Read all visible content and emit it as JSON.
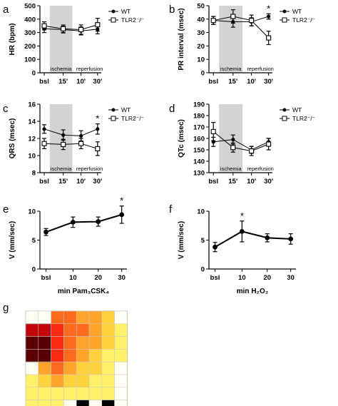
{
  "chart_data": [
    {
      "panel": "a",
      "type": "line",
      "ylabel": "HR (bpm)",
      "ylim": [
        0,
        500
      ],
      "yticks": [
        0,
        100,
        200,
        300,
        400,
        500
      ],
      "categories": [
        "bsl",
        "15'",
        "10'",
        "30'"
      ],
      "shade_label": "ischemia",
      "post_label": "reperfusion",
      "legend": [
        "WT",
        "TLR2⁻/⁻"
      ],
      "legend_position": "top-right",
      "series": [
        {
          "name": "WT",
          "marker": "circle",
          "values": [
            328,
            322,
            312,
            325
          ],
          "err": [
            28,
            25,
            30,
            35
          ]
        },
        {
          "name": "TLR2⁻/⁻",
          "marker": "square",
          "values": [
            350,
            328,
            322,
            358
          ],
          "err": [
            30,
            28,
            35,
            48
          ]
        }
      ],
      "stars": []
    },
    {
      "panel": "b",
      "type": "line",
      "ylabel": "PR interval (msec)",
      "ylim": [
        0,
        50
      ],
      "yticks": [
        0,
        10,
        20,
        30,
        40,
        50
      ],
      "categories": [
        "bsl",
        "15'",
        "10'",
        "30'"
      ],
      "shade_label": "ischemia",
      "post_label": "reperfusion",
      "legend": [
        "WT",
        "TLR2⁻/⁻"
      ],
      "legend_position": "top-right",
      "series": [
        {
          "name": "WT",
          "marker": "circle",
          "values": [
            39,
            38,
            38,
            42
          ],
          "err": [
            3,
            4,
            3,
            2
          ]
        },
        {
          "name": "TLR2⁻/⁻",
          "marker": "square",
          "values": [
            39,
            42,
            39,
            26
          ],
          "err": [
            3,
            5,
            4,
            5
          ]
        }
      ],
      "stars": [
        {
          "index": 3,
          "text": "*"
        }
      ]
    },
    {
      "panel": "c",
      "type": "line",
      "ylabel": "QRS (msec)",
      "ylim": [
        8,
        16
      ],
      "yticks": [
        8,
        10,
        12,
        14,
        16
      ],
      "categories": [
        "bsl",
        "15'",
        "10'",
        "30'"
      ],
      "shade_label": "ischemia",
      "post_label": "reperfusion",
      "legend": [
        "WT",
        "TLR2⁻/⁻"
      ],
      "legend_position": "top-right",
      "series": [
        {
          "name": "WT",
          "marker": "circle",
          "values": [
            13.1,
            12.4,
            12.3,
            13.1
          ],
          "err": [
            0.5,
            0.6,
            0.6,
            0.6
          ]
        },
        {
          "name": "TLR2⁻/⁻",
          "marker": "square",
          "values": [
            11.4,
            11.3,
            11.4,
            10.8
          ],
          "err": [
            0.6,
            0.6,
            0.6,
            0.8
          ]
        }
      ],
      "stars": [
        {
          "index": 3,
          "text": "*"
        }
      ]
    },
    {
      "panel": "d",
      "type": "line",
      "ylabel": "QTc (msec)",
      "ylim": [
        130,
        190
      ],
      "yticks": [
        130,
        140,
        150,
        160,
        170,
        180,
        190
      ],
      "categories": [
        "bsl",
        "15'",
        "10'",
        "30'"
      ],
      "shade_label": "ischemia",
      "post_label": "reperfusion",
      "legend": [
        "WT",
        "TLR2⁻/⁻"
      ],
      "legend_position": "top-right",
      "series": [
        {
          "name": "WT",
          "marker": "circle",
          "values": [
            157,
            159,
            150,
            157
          ],
          "err": [
            4,
            4,
            3,
            3
          ]
        },
        {
          "name": "TLR2⁻/⁻",
          "marker": "square",
          "values": [
            166,
            152,
            149,
            155
          ],
          "err": [
            8,
            4,
            4,
            5
          ]
        }
      ],
      "stars": []
    },
    {
      "panel": "e",
      "type": "line",
      "ylabel": "V (mm/sec)",
      "xlabel": "min Pam₃CSK₄",
      "ylim": [
        0,
        10
      ],
      "yticks": [
        0,
        5,
        10
      ],
      "categories": [
        "bsl",
        "10",
        "20",
        "30"
      ],
      "series": [
        {
          "name": "",
          "marker": "circle",
          "values": [
            6.4,
            8.1,
            8.2,
            9.4
          ],
          "err": [
            0.6,
            0.9,
            0.8,
            1.5
          ]
        }
      ],
      "stars": [
        {
          "index": 3,
          "text": "*"
        }
      ]
    },
    {
      "panel": "f",
      "type": "line",
      "ylabel": "V (mm/sec)",
      "xlabel": "min H₂O₂",
      "ylim": [
        0,
        10
      ],
      "yticks": [
        0,
        5,
        10
      ],
      "categories": [
        "bsl",
        "10",
        "20",
        "30"
      ],
      "series": [
        {
          "name": "",
          "marker": "circle",
          "values": [
            3.8,
            6.5,
            5.4,
            5.2
          ],
          "err": [
            0.8,
            1.8,
            0.7,
            0.9
          ]
        }
      ],
      "stars": [
        {
          "index": 1,
          "text": "*"
        }
      ]
    },
    {
      "panel": "g",
      "type": "heatmap",
      "rows": 8,
      "cols": 8,
      "levels": [
        [
          0,
          0,
          4,
          4,
          3,
          3,
          2,
          0
        ],
        [
          6,
          6,
          5,
          4,
          4,
          3,
          2,
          1
        ],
        [
          7,
          7,
          5,
          4,
          3,
          3,
          2,
          1
        ],
        [
          7,
          7,
          5,
          4,
          3,
          2,
          1,
          1
        ],
        [
          0,
          3,
          4,
          3,
          2,
          2,
          1,
          0
        ],
        [
          1,
          2,
          3,
          2,
          2,
          1,
          1,
          0
        ],
        [
          1,
          1,
          1,
          1,
          1,
          1,
          1,
          0
        ],
        [
          1,
          1,
          1,
          0,
          8,
          0,
          8,
          0
        ]
      ],
      "palette": [
        "#fffef2",
        "#fff06a",
        "#ffd23c",
        "#ffa428",
        "#ff6a1e",
        "#ff2a14",
        "#c2050a",
        "#5a0004",
        "#000000"
      ]
    }
  ],
  "panel_letters": [
    "a",
    "b",
    "c",
    "d",
    "e",
    "f",
    "g"
  ]
}
